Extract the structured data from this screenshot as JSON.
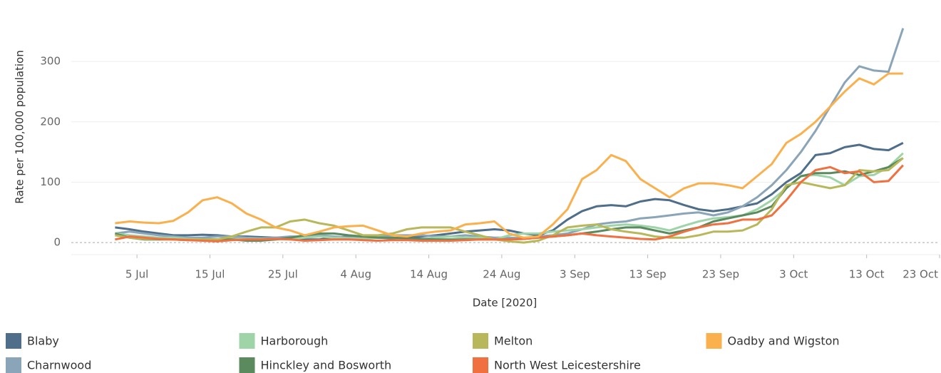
{
  "chart_data": {
    "type": "line",
    "y_label": "Rate per 100,000 population",
    "x_label": "Date [2020]",
    "x": [
      "2020-07-02",
      "2020-07-04",
      "2020-07-06",
      "2020-07-08",
      "2020-07-10",
      "2020-07-12",
      "2020-07-14",
      "2020-07-16",
      "2020-07-18",
      "2020-07-20",
      "2020-07-22",
      "2020-07-24",
      "2020-07-26",
      "2020-07-28",
      "2020-07-30",
      "2020-08-01",
      "2020-08-03",
      "2020-08-05",
      "2020-08-07",
      "2020-08-09",
      "2020-08-11",
      "2020-08-13",
      "2020-08-15",
      "2020-08-17",
      "2020-08-19",
      "2020-08-21",
      "2020-08-23",
      "2020-08-25",
      "2020-08-27",
      "2020-08-29",
      "2020-08-31",
      "2020-09-02",
      "2020-09-04",
      "2020-09-06",
      "2020-09-08",
      "2020-09-10",
      "2020-09-12",
      "2020-09-14",
      "2020-09-16",
      "2020-09-18",
      "2020-09-20",
      "2020-09-22",
      "2020-09-24",
      "2020-09-26",
      "2020-09-28",
      "2020-09-30",
      "2020-10-02",
      "2020-10-04",
      "2020-10-06",
      "2020-10-08",
      "2020-10-10",
      "2020-10-12",
      "2020-10-14",
      "2020-10-16",
      "2020-10-18"
    ],
    "series": [
      {
        "name": "Blaby",
        "color": "#4e6e8a",
        "values": [
          25,
          22,
          18,
          15,
          12,
          12,
          13,
          12,
          10,
          10,
          9,
          8,
          7,
          5,
          5,
          8,
          10,
          10,
          8,
          7,
          8,
          10,
          12,
          15,
          18,
          20,
          22,
          20,
          15,
          12,
          20,
          38,
          52,
          60,
          62,
          60,
          68,
          72,
          70,
          62,
          55,
          52,
          55,
          60,
          65,
          80,
          100,
          115,
          145,
          148,
          158,
          162,
          155,
          153,
          165
        ]
      },
      {
        "name": "Charnwood",
        "color": "#8aa4b8",
        "values": [
          15,
          18,
          15,
          12,
          10,
          8,
          8,
          10,
          10,
          8,
          7,
          8,
          10,
          10,
          12,
          10,
          8,
          8,
          10,
          12,
          12,
          12,
          10,
          10,
          12,
          10,
          8,
          8,
          7,
          10,
          12,
          15,
          22,
          30,
          33,
          35,
          40,
          42,
          45,
          48,
          50,
          45,
          50,
          60,
          75,
          95,
          120,
          150,
          185,
          225,
          265,
          292,
          285,
          283,
          355
        ]
      },
      {
        "name": "Harborough",
        "color": "#9fd4a8",
        "values": [
          15,
          12,
          10,
          8,
          8,
          6,
          5,
          5,
          6,
          6,
          6,
          5,
          6,
          8,
          10,
          8,
          7,
          6,
          8,
          8,
          6,
          5,
          8,
          10,
          8,
          8,
          5,
          12,
          15,
          15,
          18,
          20,
          22,
          25,
          28,
          30,
          28,
          25,
          20,
          28,
          35,
          40,
          42,
          45,
          55,
          70,
          90,
          110,
          112,
          108,
          95,
          110,
          112,
          125,
          148
        ]
      },
      {
        "name": "Hinckley and Bosworth",
        "color": "#5b8a5e",
        "values": [
          15,
          8,
          5,
          5,
          5,
          4,
          5,
          5,
          5,
          3,
          3,
          5,
          8,
          12,
          15,
          15,
          12,
          10,
          8,
          8,
          7,
          6,
          5,
          5,
          5,
          5,
          5,
          5,
          6,
          8,
          10,
          12,
          15,
          18,
          22,
          25,
          25,
          20,
          15,
          20,
          25,
          35,
          40,
          45,
          50,
          60,
          90,
          110,
          115,
          115,
          118,
          112,
          118,
          125,
          140
        ]
      },
      {
        "name": "Melton",
        "color": "#b8b85a",
        "values": [
          12,
          8,
          6,
          6,
          5,
          5,
          5,
          5,
          10,
          18,
          25,
          25,
          35,
          38,
          32,
          28,
          20,
          12,
          12,
          15,
          22,
          25,
          25,
          25,
          18,
          12,
          5,
          2,
          0,
          3,
          12,
          25,
          28,
          30,
          22,
          18,
          15,
          10,
          8,
          8,
          12,
          18,
          18,
          20,
          30,
          55,
          95,
          100,
          95,
          90,
          95,
          120,
          118,
          120,
          140
        ]
      },
      {
        "name": "North West Leicestershire",
        "color": "#f07040",
        "values": [
          5,
          10,
          8,
          6,
          5,
          4,
          3,
          2,
          4,
          5,
          5,
          6,
          5,
          3,
          4,
          5,
          5,
          4,
          3,
          4,
          4,
          3,
          3,
          3,
          4,
          5,
          5,
          5,
          6,
          8,
          10,
          12,
          15,
          12,
          10,
          8,
          6,
          5,
          10,
          18,
          25,
          30,
          32,
          38,
          38,
          45,
          70,
          100,
          120,
          125,
          115,
          118,
          100,
          102,
          128
        ]
      },
      {
        "name": "Oadby and Wigston",
        "color": "#fbb04e",
        "values": [
          32,
          35,
          33,
          32,
          36,
          50,
          70,
          75,
          65,
          48,
          38,
          25,
          20,
          12,
          18,
          25,
          27,
          28,
          20,
          12,
          10,
          15,
          18,
          20,
          30,
          32,
          35,
          15,
          8,
          10,
          30,
          55,
          105,
          120,
          145,
          135,
          105,
          90,
          75,
          90,
          98,
          98,
          95,
          90,
          110,
          130,
          165,
          180,
          200,
          225,
          250,
          272,
          262,
          280,
          280
        ]
      }
    ],
    "xlim": [
      "2020-06-26",
      "2020-10-23"
    ],
    "xticks": [
      {
        "value": "2020-07-05",
        "label": "5 Jul"
      },
      {
        "value": "2020-07-15",
        "label": "15 Jul"
      },
      {
        "value": "2020-07-25",
        "label": "25 Jul"
      },
      {
        "value": "2020-08-04",
        "label": "4 Aug"
      },
      {
        "value": "2020-08-14",
        "label": "14 Aug"
      },
      {
        "value": "2020-08-24",
        "label": "24 Aug"
      },
      {
        "value": "2020-09-03",
        "label": "3 Sep"
      },
      {
        "value": "2020-09-13",
        "label": "13 Sep"
      },
      {
        "value": "2020-09-23",
        "label": "23 Sep"
      },
      {
        "value": "2020-10-03",
        "label": "3 Oct"
      },
      {
        "value": "2020-10-13",
        "label": "13 Oct"
      },
      {
        "value": "2020-10-23",
        "label": "23 Oct"
      }
    ],
    "ylim": [
      -20,
      390
    ],
    "yticks": [
      0,
      100,
      200,
      300
    ],
    "grid": true
  }
}
